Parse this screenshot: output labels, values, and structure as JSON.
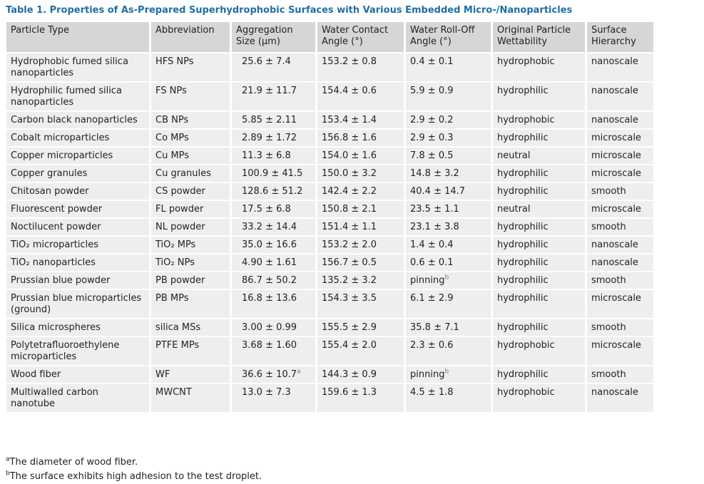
{
  "title": "Table 1. Properties of As-Prepared Superhydrophobic Surfaces with Various Embedded Micro-/Nanoparticles",
  "table": {
    "header": [
      "Particle Type",
      "Abbreviation",
      "Aggregation Size (µm)",
      "Water Contact Angle (°)",
      "Water Roll-Off Angle (°)",
      "Original Particle Wettability",
      "Surface Hierarchy"
    ],
    "rows": [
      [
        "Hydrophobic fumed silica nanoparticles",
        "HFS NPs",
        "25.6 ± 7.4",
        "153.2 ± 0.8",
        "0.4 ± 0.1",
        "hydrophobic",
        "nanoscale"
      ],
      [
        "Hydrophilic fumed silica nanoparticles",
        "FS NPs",
        "21.9 ± 11.7",
        "154.4 ± 0.6",
        "5.9 ± 0.9",
        "hydrophilic",
        "nanoscale"
      ],
      [
        "Carbon black nanoparticles",
        "CB NPs",
        "5.85 ± 2.11",
        "153.4 ± 1.4",
        "2.9 ± 0.2",
        "hydrophobic",
        "nanoscale"
      ],
      [
        "Cobalt microparticles",
        "Co MPs",
        "2.89 ± 1.72",
        "156.8 ± 1.6",
        "2.9 ± 0.3",
        "hydrophilic",
        "microscale"
      ],
      [
        "Copper microparticles",
        "Cu MPs",
        "11.3 ± 6.8",
        "154.0 ± 1.6",
        "7.8 ± 0.5",
        "neutral",
        "microscale"
      ],
      [
        "Copper granules",
        "Cu granules",
        "100.9 ± 41.5",
        "150.0 ± 3.2",
        "14.8 ± 3.2",
        "hydrophilic",
        "microscale"
      ],
      [
        "Chitosan powder",
        "CS powder",
        "128.6 ± 51.2",
        "142.4 ± 2.2",
        "40.4 ± 14.7",
        "hydrophilic",
        "smooth"
      ],
      [
        "Fluorescent powder",
        "FL powder",
        "17.5 ± 6.8",
        "150.8 ± 2.1",
        "23.5 ± 1.1",
        "neutral",
        "microscale"
      ],
      [
        "Noctilucent powder",
        "NL powder",
        "33.2 ± 14.4",
        "151.4 ± 1.1",
        "23.1 ± 3.8",
        "hydrophilic",
        "smooth"
      ],
      [
        "TiO₂ microparticles",
        "TiO₂ MPs",
        "35.0 ± 16.6",
        "153.2 ± 2.0",
        "1.4 ± 0.4",
        "hydrophilic",
        "nanoscale"
      ],
      [
        "TiO₂ nanoparticles",
        "TiO₂ NPs",
        "4.90 ± 1.61",
        "156.7 ± 0.5",
        "0.6 ± 0.1",
        "hydrophilic",
        "nanoscale"
      ],
      [
        "Prussian blue powder",
        "PB powder",
        "86.7 ± 50.2",
        "135.2 ± 3.2",
        {
          "text": "pinning",
          "sup": "b"
        },
        "hydrophilic",
        "smooth"
      ],
      [
        "Prussian blue microparticles (ground)",
        "PB MPs",
        "16.8 ± 13.6",
        "154.3 ± 3.5",
        "6.1 ± 2.9",
        "hydrophilic",
        "microscale"
      ],
      [
        "Silica microspheres",
        "silica MSs",
        "3.00 ± 0.99",
        "155.5 ± 2.9",
        "35.8 ± 7.1",
        "hydrophilic",
        "smooth"
      ],
      [
        "Polytetrafluoroethylene microparticles",
        "PTFE MPs",
        "3.68 ± 1.60",
        "155.4 ± 2.0",
        "2.3 ± 0.6",
        "hydrophobic",
        "microscale"
      ],
      [
        "Wood fiber",
        "WF",
        {
          "text": "36.6 ± 10.7",
          "sup": "a"
        },
        "144.3 ± 0.9",
        {
          "text": "pinning",
          "sup": "b"
        },
        "hydrophilic",
        "smooth"
      ],
      [
        "Multiwalled carbon nanotube",
        "MWCNT",
        "13.0 ± 7.3",
        "159.6 ± 1.3",
        "4.5 ± 1.8",
        "hydrophobic",
        "nanoscale"
      ]
    ]
  },
  "footnotes": [
    {
      "mark": "a",
      "text": "The diameter of wood fiber."
    },
    {
      "mark": "b",
      "text": "The surface exhibits high adhesion to the test droplet."
    }
  ]
}
